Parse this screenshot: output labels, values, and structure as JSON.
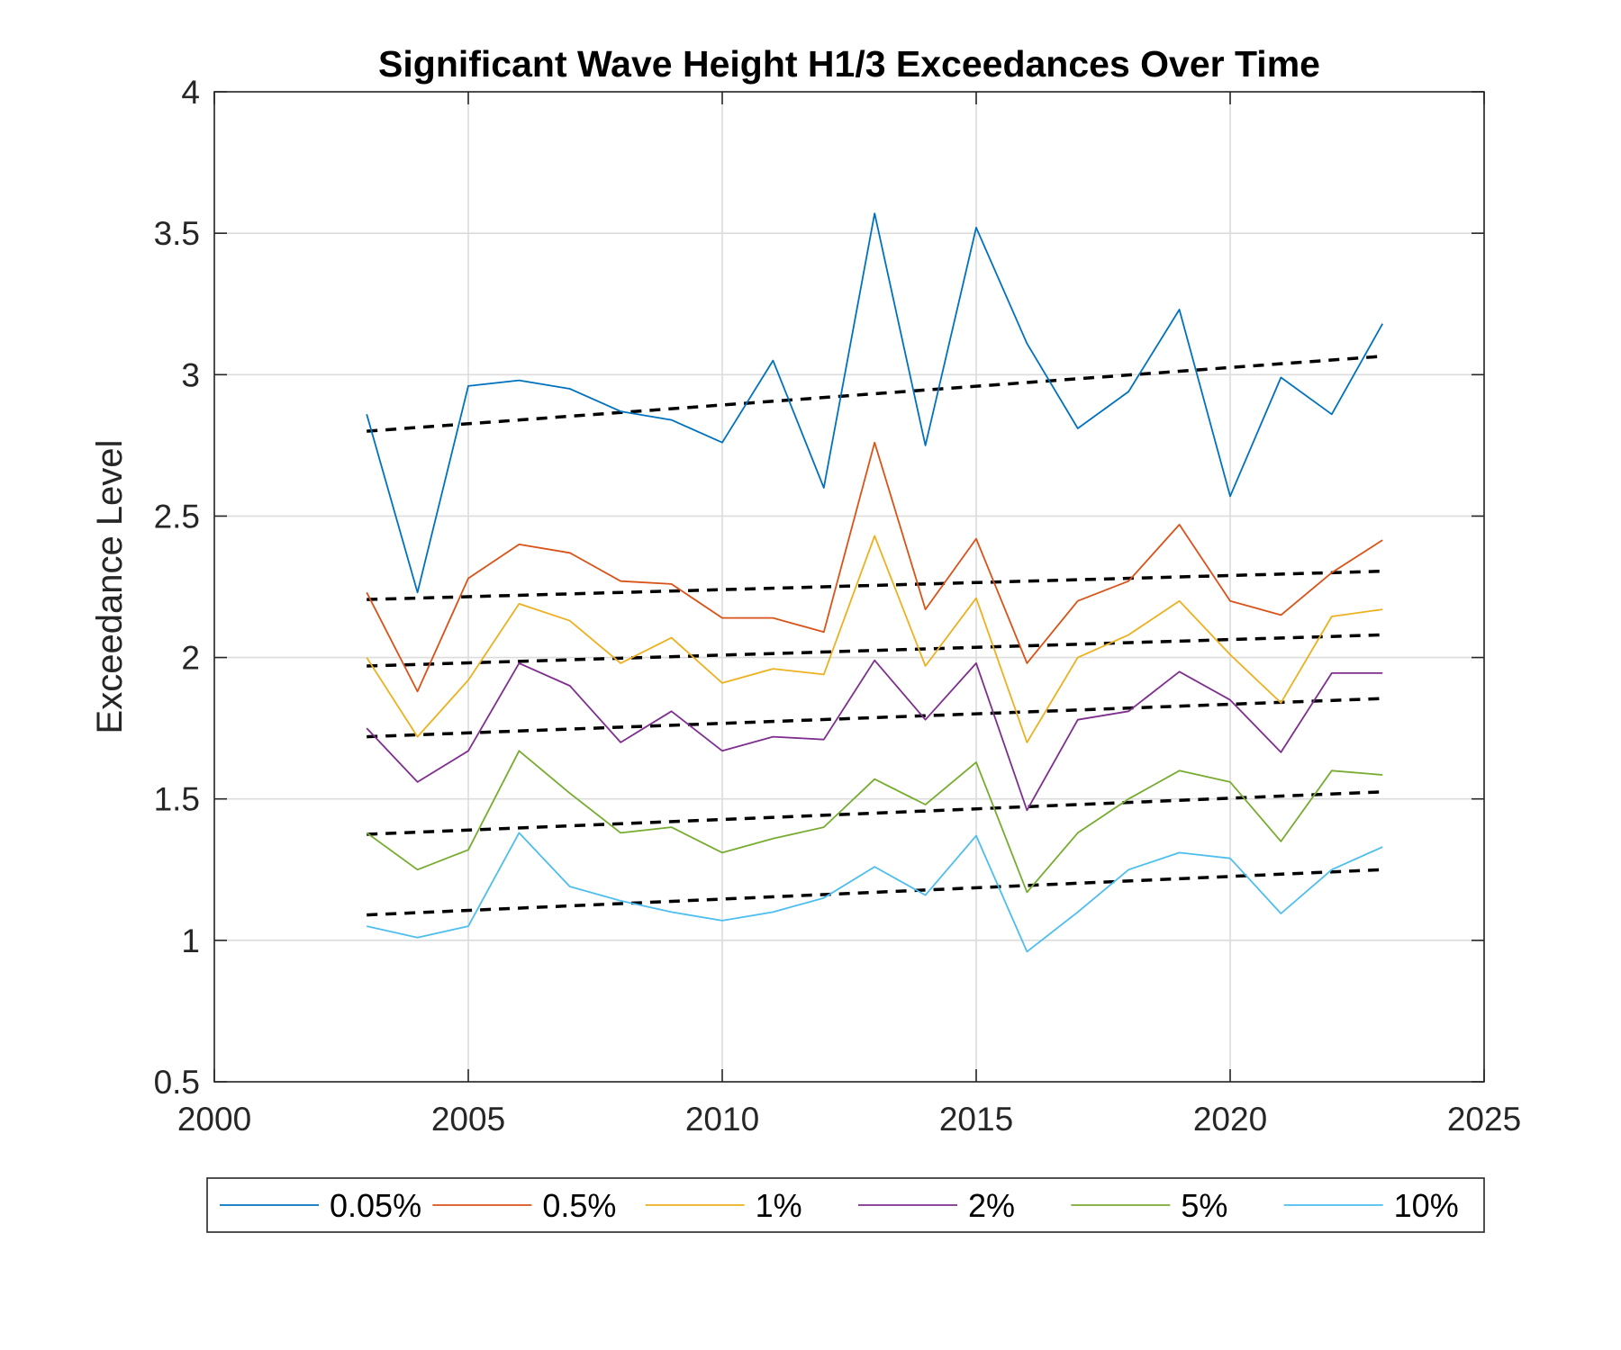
{
  "chart_data": {
    "type": "line",
    "title": "Significant Wave Height H1/3 Exceedances Over Time",
    "xlabel": "",
    "ylabel": "Exceedance Level",
    "xlim": [
      2000,
      2025
    ],
    "ylim": [
      0.5,
      4
    ],
    "xticks": [
      "2000",
      "2005",
      "2010",
      "2015",
      "2020",
      "2025"
    ],
    "yticks": [
      "0.5",
      "1",
      "1.5",
      "2",
      "2.5",
      "3",
      "3.5",
      "4"
    ],
    "grid": true,
    "legend_position": "bottom",
    "x": [
      2003,
      2004,
      2005,
      2006,
      2007,
      2008,
      2009,
      2010,
      2011,
      2012,
      2013,
      2014,
      2015,
      2016,
      2017,
      2018,
      2019,
      2020,
      2021,
      2022,
      2023
    ],
    "series": [
      {
        "name": "0.05%",
        "color": "#0072BD",
        "values": [
          2.86,
          2.23,
          2.96,
          2.98,
          2.95,
          2.87,
          2.84,
          2.76,
          3.05,
          2.6,
          3.57,
          2.75,
          3.52,
          3.11,
          2.81,
          2.94,
          3.23,
          2.57,
          2.99,
          2.86,
          3.18
        ],
        "trend": [
          2.8,
          3.065
        ]
      },
      {
        "name": "0.5%",
        "color": "#D95319",
        "values": [
          2.23,
          1.88,
          2.28,
          2.4,
          2.37,
          2.27,
          2.26,
          2.14,
          2.14,
          2.09,
          2.76,
          2.17,
          2.42,
          1.98,
          2.2,
          2.27,
          2.47,
          2.2,
          2.15,
          2.3,
          2.415
        ],
        "trend": [
          2.205,
          2.305
        ]
      },
      {
        "name": "1%",
        "color": "#EDB120",
        "values": [
          2.0,
          1.72,
          1.92,
          2.19,
          2.13,
          1.98,
          2.07,
          1.91,
          1.96,
          1.94,
          2.43,
          1.97,
          2.21,
          1.7,
          2.0,
          2.08,
          2.2,
          2.01,
          1.84,
          2.145,
          2.17
        ],
        "trend": [
          1.97,
          2.08
        ]
      },
      {
        "name": "2%",
        "color": "#7E2F8E",
        "values": [
          1.75,
          1.56,
          1.67,
          1.98,
          1.9,
          1.7,
          1.81,
          1.67,
          1.72,
          1.71,
          1.99,
          1.78,
          1.98,
          1.46,
          1.78,
          1.81,
          1.95,
          1.85,
          1.665,
          1.945,
          1.945
        ],
        "trend": [
          1.72,
          1.855
        ]
      },
      {
        "name": "5%",
        "color": "#77AC30",
        "values": [
          1.38,
          1.25,
          1.32,
          1.67,
          1.52,
          1.38,
          1.4,
          1.31,
          1.36,
          1.4,
          1.57,
          1.48,
          1.63,
          1.17,
          1.38,
          1.5,
          1.6,
          1.56,
          1.35,
          1.6,
          1.585
        ],
        "trend": [
          1.375,
          1.525
        ]
      },
      {
        "name": "10%",
        "color": "#4DBEEE",
        "values": [
          1.05,
          1.01,
          1.05,
          1.38,
          1.19,
          1.14,
          1.1,
          1.07,
          1.1,
          1.15,
          1.26,
          1.16,
          1.37,
          0.96,
          1.1,
          1.25,
          1.31,
          1.29,
          1.095,
          1.25,
          1.33
        ],
        "trend": [
          1.09,
          1.25
        ]
      }
    ]
  }
}
